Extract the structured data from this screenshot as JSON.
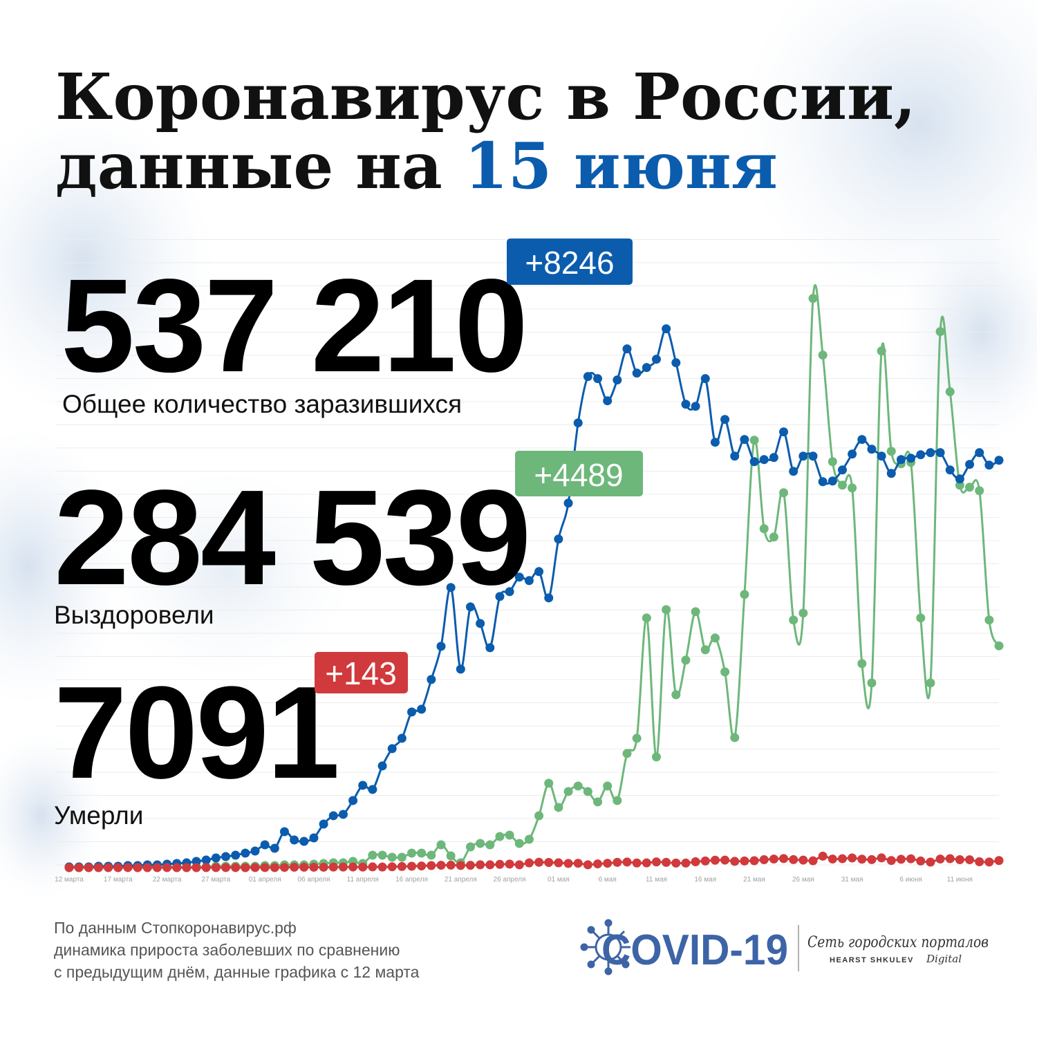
{
  "header": {
    "title_line1": "Коронавирус в России,",
    "title_line2": "данные на ",
    "title_date": "15 июня"
  },
  "stats": [
    {
      "total": "537 210",
      "delta": "+8246",
      "label": "Общее количество заразившихся"
    },
    {
      "total": "284 539",
      "delta": "+4489",
      "label": "Выздоровели"
    },
    {
      "total": "7091",
      "delta": "+143",
      "label": "Умерли"
    }
  ],
  "chart_data": {
    "type": "line",
    "ylim": [
      0,
      13000
    ],
    "categories": [
      "12 марта",
      null,
      null,
      null,
      null,
      "17 марта",
      null,
      null,
      null,
      null,
      "22 марта",
      null,
      null,
      null,
      null,
      "27 марта",
      null,
      null,
      null,
      null,
      "01 апреля",
      null,
      null,
      null,
      null,
      "06 апреля",
      null,
      null,
      null,
      null,
      "11 апреля",
      null,
      null,
      null,
      null,
      "16 апреля",
      null,
      null,
      null,
      null,
      "21 апреля",
      null,
      null,
      null,
      null,
      "26 апреля",
      null,
      null,
      null,
      null,
      "01 мая",
      null,
      null,
      null,
      null,
      "6 мая",
      null,
      null,
      null,
      null,
      "11 мая",
      null,
      null,
      null,
      null,
      "16 мая",
      null,
      null,
      null,
      null,
      "21 мая",
      null,
      null,
      null,
      null,
      "26 мая",
      null,
      null,
      null,
      null,
      "31 мая",
      null,
      null,
      null,
      null,
      null,
      "6 июня",
      null,
      null,
      null,
      null,
      "11 июня",
      null,
      null,
      null,
      null
    ],
    "series": [
      {
        "name": "Выздоровели",
        "color": "#6db77a",
        "values": [
          14,
          14,
          14,
          14,
          14,
          14,
          14,
          14,
          14,
          14,
          14,
          14,
          14,
          14,
          14,
          28,
          28,
          28,
          28,
          28,
          42,
          42,
          56,
          56,
          56,
          70,
          84,
          98,
          98,
          126,
          84,
          252,
          252,
          210,
          210,
          294,
          294,
          252,
          462,
          238,
          98,
          420,
          490,
          462,
          630,
          658,
          490,
          574,
          1050,
          1708,
          1218,
          1540,
          1652,
          1540,
          1330,
          1652,
          1358,
          2310,
          2618,
          5054,
          2240,
          5222,
          3500,
          4200,
          5180,
          4410,
          4648,
          3962,
          2632,
          5530,
          8652,
          6860,
          6692,
          7588,
          5012,
          5152,
          11522,
          10374,
          8218,
          7742,
          7686,
          4130,
          3738,
          10458,
          8428,
          8176,
          8204,
          5054,
          3738,
          10850,
          9632,
          7742,
          7700,
          7630,
          5012,
          4489
        ]
      },
      {
        "name": "Общее количество заразившихся",
        "color": "#0b5cad",
        "values": [
          14,
          14,
          14,
          28,
          28,
          28,
          42,
          42,
          56,
          56,
          70,
          84,
          98,
          126,
          154,
          196,
          224,
          252,
          294,
          336,
          462,
          392,
          728,
          560,
          532,
          602,
          882,
          1050,
          1078,
          1358,
          1666,
          1582,
          2058,
          2408,
          2618,
          3150,
          3206,
          3808,
          4480,
          5670,
          4018,
          5278,
          4942,
          4452,
          5488,
          5586,
          5880,
          5810,
          5992,
          5460,
          6650,
          7378,
          9002,
          9940,
          9898,
          9450,
          9870,
          10500,
          10010,
          10122,
          10290,
          10906,
          10220,
          9380,
          9338,
          9898,
          8610,
          9072,
          8330,
          8666,
          8218,
          8260,
          8302,
          8820,
          8022,
          8330,
          8330,
          7812,
          7826,
          8050,
          8372,
          8666,
          8470,
          8330,
          7980,
          8260,
          8288,
          8358,
          8400,
          8400,
          8050,
          7868,
          8162,
          8400,
          8148,
          8246
        ]
      },
      {
        "name": "Умерли",
        "color": "#d03a3c",
        "values": [
          0,
          0,
          0,
          0,
          0,
          0,
          1,
          0,
          0,
          0,
          1,
          0,
          0,
          0,
          1,
          1,
          1,
          1,
          0,
          1,
          2,
          2,
          4,
          9,
          9,
          9,
          9,
          11,
          12,
          13,
          11,
          15,
          12,
          17,
          22,
          28,
          34,
          42,
          48,
          50,
          44,
          47,
          58,
          57,
          66,
          72,
          58,
          96,
          108,
          105,
          98,
          86,
          88,
          58,
          76,
          88,
          107,
          113,
          94,
          96,
          115,
          107,
          93,
          92,
          119,
          135,
          150,
          153,
          127,
          135,
          140,
          161,
          174,
          184,
          162,
          153,
          139,
          232,
          174,
          181,
          196,
          171,
          162,
          197,
          144,
          169,
          179,
          134,
          112,
          174,
          182,
          161,
          160,
          119,
          114,
          143
        ]
      }
    ]
  },
  "footer": {
    "line1": "По данным Стопкоронавирус.рф",
    "line2": "динамика прироста заболевших по сравнению",
    "line3": "с предыдущим днём, данные графика с 12 марта"
  },
  "logo": {
    "covid": "COVID-19",
    "network": "Сеть городских порталов",
    "brand": "HEARST SHKULEV",
    "digital": "Digital"
  }
}
